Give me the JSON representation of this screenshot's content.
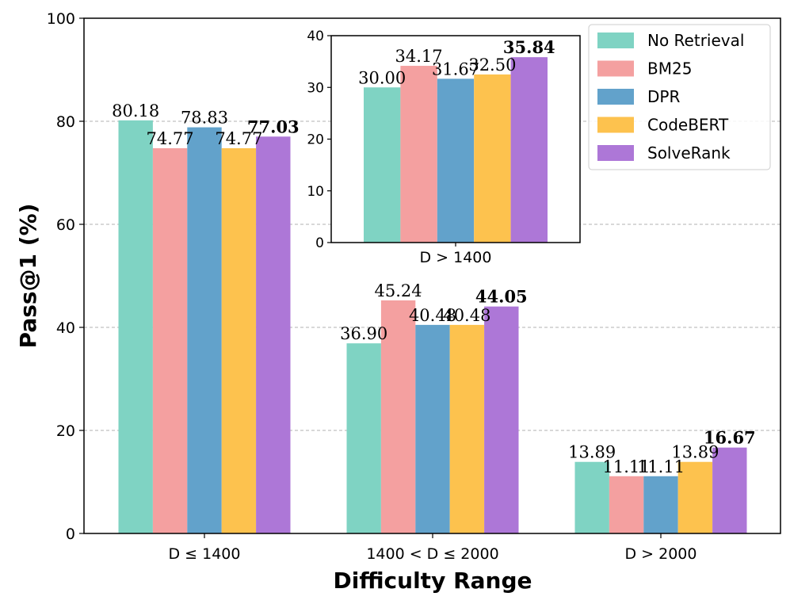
{
  "chart_data": {
    "type": "bar",
    "xlabel": "Difficulty Range",
    "ylabel": "Pass@1 (%)",
    "ylim": [
      0,
      100
    ],
    "yticks": [
      "0",
      "20",
      "40",
      "60",
      "80",
      "100"
    ],
    "grid": "y-dashed",
    "legend_position": "top-right",
    "categories": [
      "D ≤ 1400",
      "1400 < D ≤ 2000",
      "D > 2000"
    ],
    "series": [
      {
        "name": "No Retrieval",
        "color": "#7fd3c3",
        "values": [
          80.18,
          36.9,
          13.89
        ],
        "labels": [
          "80.18",
          "36.90",
          "13.89"
        ]
      },
      {
        "name": "BM25",
        "color": "#f4a0a0",
        "values": [
          74.77,
          45.24,
          11.11
        ],
        "labels": [
          "74.77",
          "45.24",
          "11.11"
        ]
      },
      {
        "name": "DPR",
        "color": "#62a2cb",
        "values": [
          78.83,
          40.48,
          11.11
        ],
        "labels": [
          "78.83",
          "40.48",
          "11.11"
        ]
      },
      {
        "name": "CodeBERT",
        "color": "#fdc24e",
        "values": [
          74.77,
          40.48,
          13.89
        ],
        "labels": [
          "74.77",
          "40.48",
          "13.89"
        ]
      },
      {
        "name": "SolveRank",
        "color": "#ad77d7",
        "values": [
          77.03,
          44.05,
          16.67
        ],
        "labels": [
          "77.03",
          "44.05",
          "16.67"
        ],
        "bold_labels": true
      }
    ],
    "inset": {
      "type": "bar",
      "category": "D > 1400",
      "ylim": [
        0,
        40
      ],
      "yticks": [
        "0",
        "10",
        "20",
        "30",
        "40"
      ],
      "values": [
        30.0,
        34.17,
        31.67,
        32.5,
        35.84
      ],
      "labels": [
        "30.00",
        "34.17",
        "31.67",
        "32.50",
        "35.84"
      ]
    }
  }
}
